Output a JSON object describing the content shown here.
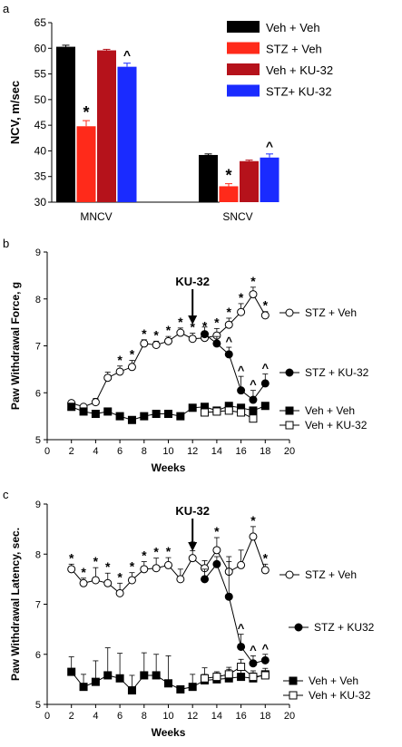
{
  "chart_data": [
    {
      "panel": "a",
      "type": "bar",
      "ylabel": "NCV, m/sec",
      "ylim": [
        30,
        65
      ],
      "yticks": [
        30,
        35,
        40,
        45,
        50,
        55,
        60,
        65
      ],
      "categories": [
        "MNCV",
        "SNCV"
      ],
      "series": [
        {
          "name": "Veh + Veh",
          "color": "#000000",
          "values": [
            60.3,
            39.2
          ],
          "errors": [
            0.3,
            0.2
          ],
          "marks": [
            "",
            ""
          ]
        },
        {
          "name": "STZ + Veh",
          "color": "#ff2a1a",
          "values": [
            44.8,
            33.1
          ],
          "errors": [
            1.1,
            0.5
          ],
          "marks": [
            "*",
            "*"
          ]
        },
        {
          "name": "Veh + KU-32",
          "color": "#b5121b",
          "values": [
            59.6,
            38.0
          ],
          "errors": [
            0.2,
            0.2
          ],
          "marks": [
            "",
            ""
          ]
        },
        {
          "name": "STZ+ KU-32",
          "color": "#1a2bff",
          "values": [
            56.4,
            38.7
          ],
          "errors": [
            0.7,
            0.7
          ],
          "marks": [
            "^",
            "^"
          ]
        }
      ],
      "legend_position": "top-right"
    },
    {
      "panel": "b",
      "type": "line",
      "xlabel": "Weeks",
      "ylabel": "Paw Withdrawal Force, g",
      "xlim": [
        0,
        20
      ],
      "ylim": [
        5,
        9
      ],
      "xticks": [
        0,
        2,
        4,
        6,
        8,
        10,
        12,
        14,
        16,
        18,
        20
      ],
      "yticks": [
        5,
        6,
        7,
        8,
        9
      ],
      "annotation": {
        "text": "KU-32",
        "x": 12
      },
      "series": [
        {
          "name": "STZ + Veh",
          "marker": "open-circle",
          "x": [
            2,
            3,
            4,
            5,
            6,
            7,
            8,
            9,
            10,
            11,
            12,
            13,
            14,
            15,
            16,
            17,
            18
          ],
          "y": [
            5.78,
            5.7,
            5.8,
            6.32,
            6.45,
            6.55,
            7.05,
            7.02,
            7.1,
            7.28,
            7.15,
            7.17,
            7.22,
            7.45,
            7.72,
            8.1,
            7.65
          ],
          "err": [
            0.05,
            0.05,
            0.08,
            0.12,
            0.12,
            0.14,
            0.08,
            0.08,
            0.1,
            0.1,
            0.12,
            0.12,
            0.15,
            0.14,
            0.18,
            0.15,
            0.08
          ],
          "marks": [
            "",
            "",
            "",
            "",
            "*",
            "*",
            "*",
            "*",
            "*",
            "*",
            "*",
            "*",
            "*",
            "*",
            "*",
            "*",
            "*"
          ]
        },
        {
          "name": "STZ + KU-32",
          "marker": "filled-circle",
          "x": [
            13,
            14,
            15,
            16,
            17,
            18
          ],
          "y": [
            7.25,
            7.05,
            6.82,
            6.05,
            5.85,
            6.2
          ],
          "err": [
            0.15,
            0.15,
            0.15,
            0.3,
            0.2,
            0.2
          ],
          "marks": [
            "",
            "",
            "^",
            "^",
            "^",
            "^"
          ]
        },
        {
          "name": "Veh + Veh",
          "marker": "filled-square",
          "x": [
            2,
            3,
            4,
            5,
            6,
            7,
            8,
            9,
            10,
            11,
            12,
            13,
            14,
            15,
            16,
            17,
            18
          ],
          "y": [
            5.7,
            5.6,
            5.55,
            5.6,
            5.5,
            5.42,
            5.5,
            5.55,
            5.55,
            5.5,
            5.68,
            5.7,
            5.62,
            5.72,
            5.68,
            5.62,
            5.72
          ],
          "err": [
            0.04,
            0.04,
            0.04,
            0.04,
            0.04,
            0.04,
            0.04,
            0.04,
            0.04,
            0.04,
            0.04,
            0.04,
            0.04,
            0.04,
            0.04,
            0.04,
            0.04
          ],
          "marks": []
        },
        {
          "name": "Veh + KU-32",
          "marker": "open-square",
          "x": [
            13,
            14,
            15,
            16,
            17
          ],
          "y": [
            5.58,
            5.6,
            5.62,
            5.58,
            5.45
          ],
          "err": [
            0.08,
            0.08,
            0.06,
            0.08,
            0.1
          ],
          "marks": []
        }
      ]
    },
    {
      "panel": "c",
      "type": "line",
      "xlabel": "Weeks",
      "ylabel": "Paw Withdrawal Latency, sec.",
      "xlim": [
        0,
        20
      ],
      "ylim": [
        5,
        9
      ],
      "xticks": [
        0,
        2,
        4,
        6,
        8,
        10,
        12,
        14,
        16,
        18,
        20
      ],
      "yticks": [
        5,
        6,
        7,
        8,
        9
      ],
      "annotation": {
        "text": "KU-32",
        "x": 12
      },
      "series": [
        {
          "name": "STZ + Veh",
          "marker": "open-circle",
          "x": [
            2,
            3,
            4,
            5,
            6,
            7,
            8,
            9,
            10,
            11,
            12,
            13,
            14,
            15,
            16,
            17,
            18
          ],
          "y": [
            7.7,
            7.42,
            7.48,
            7.42,
            7.22,
            7.48,
            7.7,
            7.72,
            7.78,
            7.5,
            7.92,
            7.72,
            8.08,
            7.65,
            7.78,
            8.35,
            7.68
          ],
          "err": [
            0.1,
            0.1,
            0.25,
            0.2,
            0.2,
            0.15,
            0.15,
            0.2,
            0.15,
            0.2,
            0.15,
            0.15,
            0.25,
            0.3,
            0.3,
            0.2,
            0.12
          ],
          "marks": [
            "*",
            "*",
            "*",
            "*",
            "*",
            "*",
            "*",
            "*",
            "*",
            "",
            "*",
            "",
            "*",
            "",
            "",
            "*",
            "*"
          ]
        },
        {
          "name": "STZ + KU32",
          "marker": "filled-circle",
          "x": [
            13,
            14,
            15,
            16,
            17,
            18
          ],
          "y": [
            7.5,
            7.8,
            7.15,
            6.15,
            5.82,
            5.88
          ],
          "err": [
            0.2,
            0.15,
            0.7,
            0.25,
            0.15,
            0.12
          ],
          "marks": [
            "",
            "",
            "",
            "^",
            "^",
            "^"
          ]
        },
        {
          "name": "Veh + Veh",
          "marker": "filled-square",
          "x": [
            2,
            3,
            4,
            5,
            6,
            7,
            8,
            9,
            10,
            11,
            12,
            13,
            14,
            15,
            16,
            17,
            18
          ],
          "y": [
            5.65,
            5.35,
            5.45,
            5.58,
            5.52,
            5.28,
            5.58,
            5.58,
            5.42,
            5.3,
            5.35,
            5.48,
            5.5,
            5.52,
            5.55,
            5.52,
            5.6
          ],
          "err": [
            0.3,
            0.25,
            0.42,
            0.55,
            0.5,
            0.3,
            0.45,
            0.42,
            0.55,
            0.05,
            0.25,
            0.25,
            0.15,
            0.22,
            0.2,
            0.15,
            0.12
          ],
          "marks": []
        },
        {
          "name": "Veh + KU-32",
          "marker": "open-square",
          "x": [
            13,
            14,
            15,
            16,
            17,
            18
          ],
          "y": [
            5.52,
            5.55,
            5.6,
            5.75,
            5.55,
            5.58
          ],
          "err": [
            0.08,
            0.1,
            0.1,
            0.15,
            0.08,
            0.08
          ],
          "marks": []
        }
      ]
    }
  ]
}
